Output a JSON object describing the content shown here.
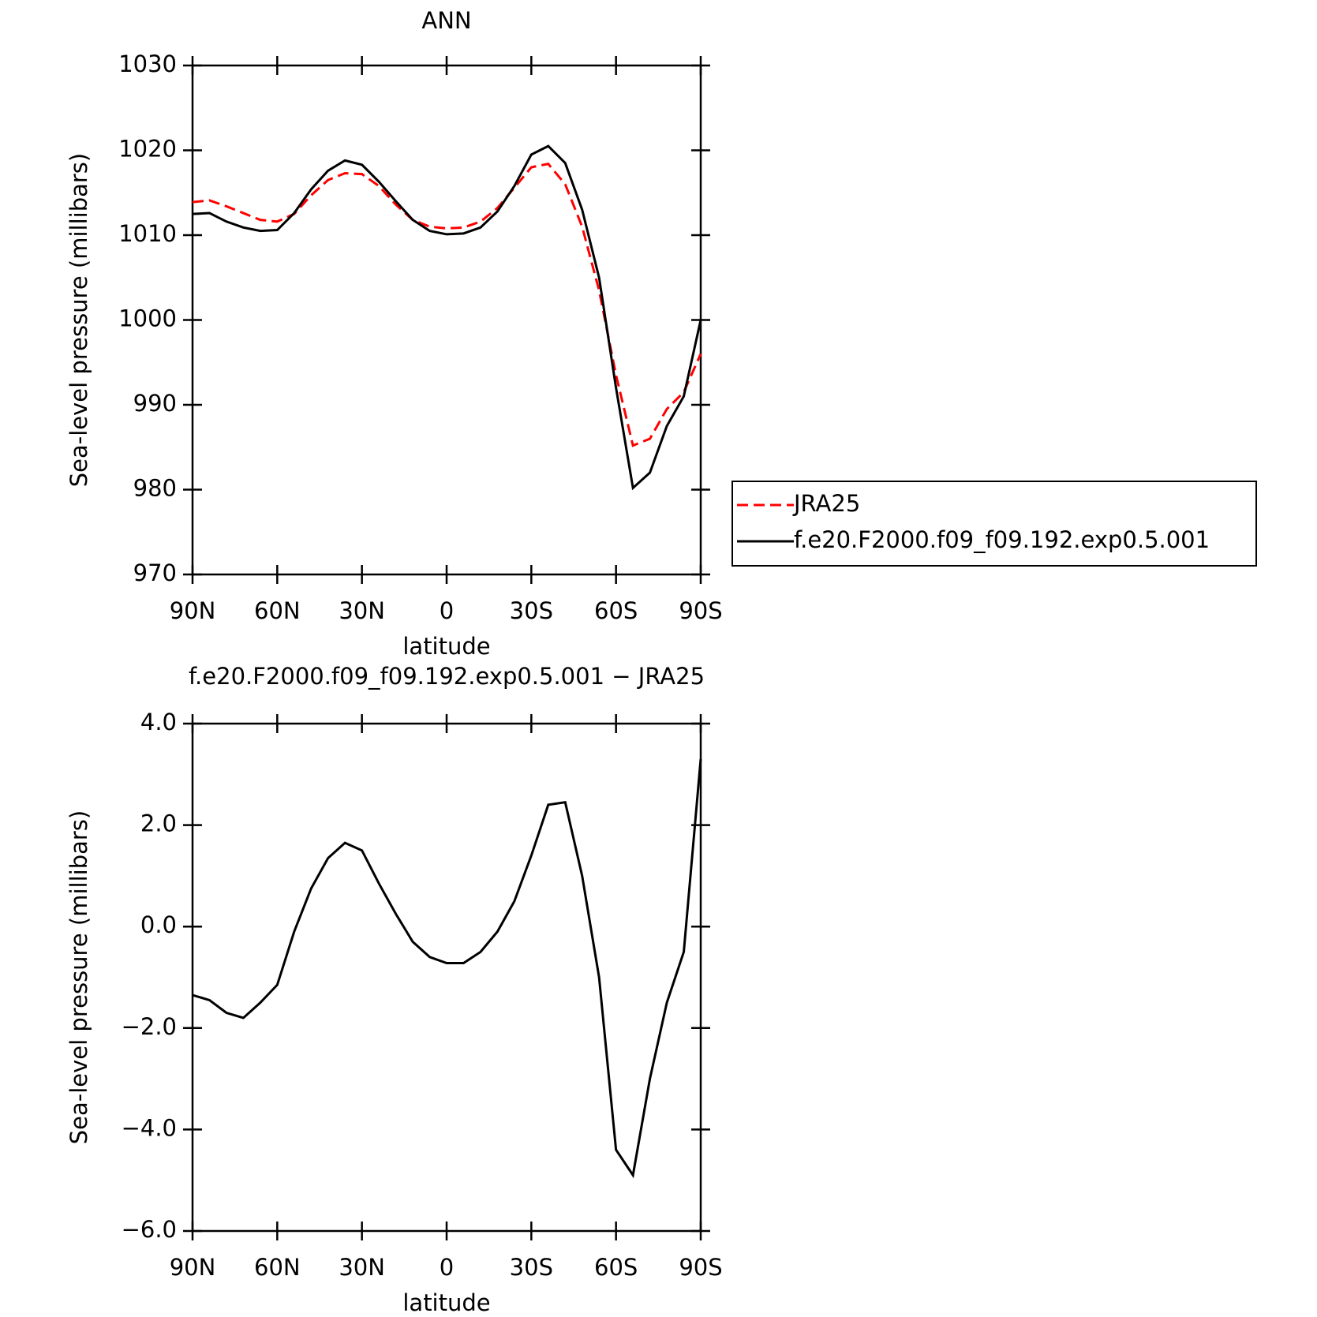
{
  "chart_data": [
    {
      "type": "line",
      "title": "ANN",
      "xlabel": "latitude",
      "ylabel": "Sea-level pressure (millibars)",
      "x": [
        90,
        84,
        78,
        72,
        66,
        60,
        54,
        48,
        42,
        36,
        30,
        24,
        18,
        12,
        6,
        0,
        -6,
        -12,
        -18,
        -24,
        -30,
        -36,
        -42,
        -48,
        -54,
        -60,
        -66,
        -72,
        -78,
        -84,
        -90
      ],
      "series": [
        {
          "name": "JRA25",
          "color": "#ff0000",
          "dash": "dashed",
          "values": [
            1013.9,
            1014.1,
            1013.4,
            1012.6,
            1011.8,
            1011.6,
            1012.5,
            1014.7,
            1016.5,
            1017.3,
            1017.2,
            1015.8,
            1013.6,
            1011.8,
            1011,
            1010.8,
            1010.9,
            1011.6,
            1013.2,
            1015.6,
            1018,
            1018.4,
            1016,
            1011,
            1003.5,
            993.5,
            985.2,
            986,
            989.5,
            991.5,
            996
          ]
        },
        {
          "name": "f.e20.F2000.f09_f09.192.exp0.5.001",
          "color": "#000000",
          "dash": "solid",
          "values": [
            1012.5,
            1012.6,
            1011.6,
            1010.9,
            1010.5,
            1010.6,
            1012.6,
            1015.4,
            1017.6,
            1018.8,
            1018.3,
            1016.3,
            1014,
            1011.8,
            1010.5,
            1010.1,
            1010.2,
            1010.9,
            1012.8,
            1015.8,
            1019.5,
            1020.5,
            1018.5,
            1013,
            1005,
            992,
            980.2,
            982,
            987.5,
            991,
            1000
          ]
        }
      ],
      "xlim": [
        90,
        -90
      ],
      "xticks": [
        {
          "value": 90,
          "label": "90N"
        },
        {
          "value": 60,
          "label": "60N"
        },
        {
          "value": 30,
          "label": "30N"
        },
        0,
        {
          "value": -30,
          "label": "30S"
        },
        {
          "value": -60,
          "label": "60S"
        },
        {
          "value": -90,
          "label": "90S"
        }
      ],
      "ylim": [
        970,
        1030
      ],
      "yticks": [
        970,
        980,
        990,
        1000,
        1010,
        1020,
        1030
      ],
      "legend": "right"
    },
    {
      "type": "line",
      "title": "f.e20.F2000.f09_f09.192.exp0.5.001 − JRA25",
      "xlabel": "latitude",
      "ylabel": "Sea-level pressure (millibars)",
      "x": [
        90,
        84,
        78,
        72,
        66,
        60,
        54,
        48,
        42,
        36,
        30,
        24,
        18,
        12,
        6,
        0,
        -6,
        -12,
        -18,
        -24,
        -30,
        -36,
        -42,
        -48,
        -54,
        -60,
        -66,
        -72,
        -78,
        -84,
        -90
      ],
      "series": [
        {
          "color": "#000000",
          "dash": "solid",
          "values": [
            -1.35,
            -1.45,
            -1.7,
            -1.8,
            -1.5,
            -1.15,
            -0.1,
            0.75,
            1.35,
            1.65,
            1.5,
            0.85,
            0.25,
            -0.3,
            -0.6,
            -0.72,
            -0.72,
            -0.5,
            -0.1,
            0.5,
            1.4,
            2.4,
            2.45,
            1.0,
            -1.0,
            -4.4,
            -4.9,
            -3.0,
            -1.5,
            -0.5,
            3.3
          ]
        }
      ],
      "xlim": [
        90,
        -90
      ],
      "xticks": [
        {
          "value": 90,
          "label": "90N"
        },
        {
          "value": 60,
          "label": "60N"
        },
        {
          "value": 30,
          "label": "30N"
        },
        0,
        {
          "value": -30,
          "label": "30S"
        },
        {
          "value": -60,
          "label": "60S"
        },
        {
          "value": -90,
          "label": "90S"
        }
      ],
      "ylim": [
        -6,
        4
      ],
      "yticks": [
        {
          "value": -6,
          "label": "−6.0"
        },
        {
          "value": -4,
          "label": "−4.0"
        },
        {
          "value": -2,
          "label": "−2.0"
        },
        {
          "value": 0,
          "label": "0.0"
        },
        {
          "value": 2,
          "label": "2.0"
        },
        {
          "value": 4,
          "label": "4.0"
        }
      ]
    }
  ]
}
